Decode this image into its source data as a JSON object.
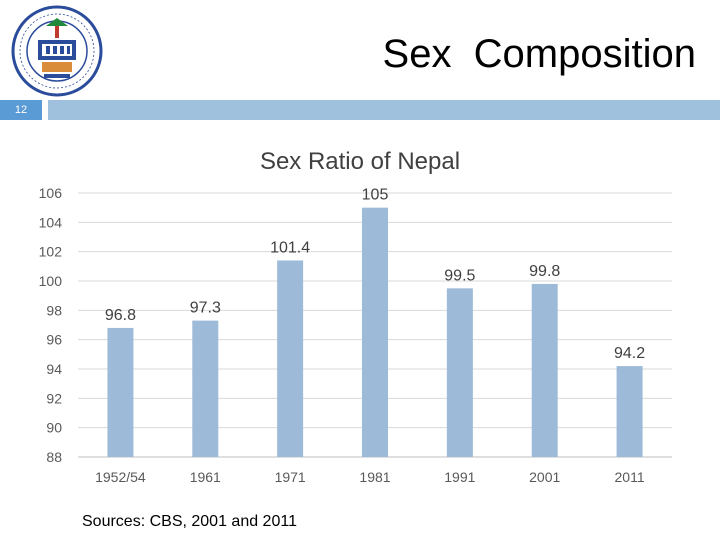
{
  "slide": {
    "title": "Sex  Composition",
    "number": "12",
    "source": "Sources: CBS, 2001 and 2011",
    "accent_color": "#5b9bd5",
    "band_color": "#9fc1dd"
  },
  "logo": {
    "icon": "institution-seal-icon"
  },
  "chart_data": {
    "type": "bar",
    "title": "Sex Ratio of Nepal",
    "xlabel": "",
    "ylabel": "",
    "categories": [
      "1952/54",
      "1961",
      "1971",
      "1981",
      "1991",
      "2001",
      "2011"
    ],
    "values": [
      96.8,
      97.3,
      101.4,
      105,
      99.5,
      99.8,
      94.2
    ],
    "value_labels": [
      "96.8",
      "97.3",
      "101.4",
      "105",
      "99.5",
      "99.8",
      "94.2"
    ],
    "ylim": [
      88,
      106
    ],
    "yticks": [
      88,
      90,
      92,
      94,
      96,
      98,
      100,
      102,
      104,
      106
    ],
    "grid": true,
    "bar_color": "#9dbbd8"
  }
}
